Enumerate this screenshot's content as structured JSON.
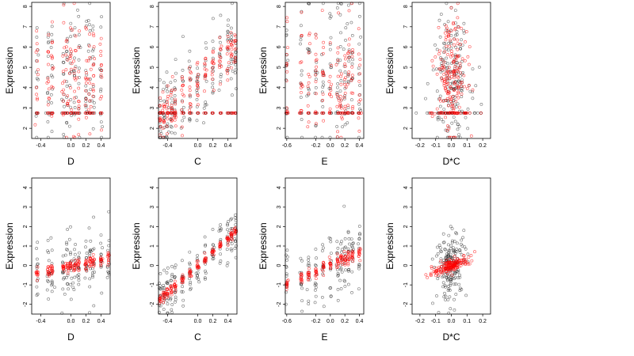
{
  "colors": {
    "series_black": "#000000",
    "series_red": "#ff0000"
  },
  "chart_data": [
    {
      "type": "scatter",
      "panel": "top-1",
      "xlabel": "D",
      "ylabel": "Expression",
      "xlim": [
        -0.52,
        0.52
      ],
      "ylim": [
        1.5,
        8.2
      ],
      "xticks": [
        -0.4,
        0.0,
        0.2,
        0.4
      ],
      "xtick_labels": [
        "-0.4",
        "0.0",
        "0.2",
        "0.4"
      ],
      "yticks": [
        2,
        3,
        4,
        5,
        6,
        7,
        8
      ],
      "ytick_labels": [
        "2",
        "3",
        "4",
        "5",
        "6",
        "7",
        "8"
      ],
      "series": [
        {
          "color": "#000000",
          "pattern": "wide",
          "floor": 2.75,
          "x": [
            -0.45,
            -0.3,
            -0.25,
            -0.1,
            -0.05,
            0.0,
            0.05,
            0.1,
            0.2,
            0.25,
            0.3,
            0.4
          ],
          "center": 4.5,
          "spread": 1.8
        },
        {
          "color": "#ff0000",
          "pattern": "wide",
          "floor": 2.75,
          "x": [
            -0.45,
            -0.3,
            -0.25,
            -0.1,
            -0.05,
            0.0,
            0.05,
            0.1,
            0.2,
            0.25,
            0.3,
            0.4
          ],
          "center": 4.8,
          "spread": 1.5
        }
      ]
    },
    {
      "type": "scatter",
      "panel": "top-2",
      "xlabel": "C",
      "ylabel": "Expression",
      "xlim": [
        -0.52,
        0.52
      ],
      "ylim": [
        1.5,
        8.2
      ],
      "xticks": [
        -0.4,
        0.0,
        0.2,
        0.4
      ],
      "xtick_labels": [
        "-0.4",
        "0.0",
        "0.2",
        "0.4"
      ],
      "yticks": [
        2,
        3,
        4,
        5,
        6,
        7,
        8
      ],
      "ytick_labels": [
        "2",
        "3",
        "4",
        "5",
        "6",
        "7",
        "8"
      ],
      "series": [
        {
          "color": "#000000",
          "pattern": "trend",
          "floor": 2.75,
          "slope": 4.0,
          "intercept": 4.2,
          "spread": 1.2,
          "x": [
            -0.5,
            -0.45,
            -0.4,
            -0.35,
            -0.3,
            -0.2,
            -0.1,
            0.0,
            0.1,
            0.2,
            0.3,
            0.4,
            0.45,
            0.5
          ]
        },
        {
          "color": "#ff0000",
          "pattern": "trend",
          "floor": 2.75,
          "slope": 3.5,
          "intercept": 4.3,
          "spread": 0.6,
          "x": [
            -0.5,
            -0.45,
            -0.4,
            -0.35,
            -0.3,
            -0.2,
            -0.1,
            0.0,
            0.1,
            0.2,
            0.3,
            0.4,
            0.45,
            0.5
          ]
        }
      ]
    },
    {
      "type": "scatter",
      "panel": "top-3",
      "xlabel": "E",
      "ylabel": "Expression",
      "xlim": [
        -0.62,
        0.46
      ],
      "ylim": [
        1.5,
        8.2
      ],
      "xticks": [
        -0.6,
        -0.2,
        0.0,
        0.2,
        0.4
      ],
      "xtick_labels": [
        "-0.6",
        "-0.2",
        "0.0",
        "0.2",
        "0.4"
      ],
      "yticks": [
        2,
        3,
        4,
        5,
        6,
        7,
        8
      ],
      "ytick_labels": [
        "2",
        "3",
        "4",
        "5",
        "6",
        "7",
        "8"
      ],
      "series": [
        {
          "color": "#000000",
          "pattern": "wide",
          "floor": 2.75,
          "x": [
            -0.6,
            -0.4,
            -0.3,
            -0.2,
            -0.1,
            0.0,
            0.1,
            0.15,
            0.2,
            0.25,
            0.3,
            0.4
          ],
          "center": 4.6,
          "spread": 1.8
        },
        {
          "color": "#ff0000",
          "pattern": "wide",
          "floor": 2.75,
          "x": [
            -0.6,
            -0.4,
            -0.3,
            -0.2,
            -0.1,
            0.0,
            0.1,
            0.15,
            0.2,
            0.25,
            0.3,
            0.4
          ],
          "center": 4.5,
          "spread": 1.5
        }
      ]
    },
    {
      "type": "scatter",
      "panel": "top-4",
      "xlabel": "D*C",
      "ylabel": "Expression",
      "xlim": [
        -0.25,
        0.25
      ],
      "ylim": [
        1.5,
        8.2
      ],
      "xticks": [
        -0.2,
        -0.1,
        0.0,
        0.1,
        0.2
      ],
      "xtick_labels": [
        "-0.2",
        "-0.1",
        "0.0",
        "0.1",
        "0.2"
      ],
      "yticks": [
        2,
        3,
        4,
        5,
        6,
        7,
        8
      ],
      "ytick_labels": [
        "2",
        "3",
        "4",
        "5",
        "6",
        "7",
        "8"
      ],
      "series": [
        {
          "color": "#000000",
          "pattern": "center",
          "floor": 2.75,
          "center": 4.5,
          "spread": 1.8,
          "xsd": 0.06
        },
        {
          "color": "#ff0000",
          "pattern": "center",
          "floor": 2.75,
          "center": 4.6,
          "spread": 1.6,
          "xsd": 0.05
        }
      ]
    },
    {
      "type": "scatter",
      "panel": "bottom-1",
      "xlabel": "D",
      "ylabel": "Expression",
      "xlim": [
        -0.52,
        0.52
      ],
      "ylim": [
        -2.5,
        4.5
      ],
      "xticks": [
        -0.4,
        0.0,
        0.2,
        0.4
      ],
      "xtick_labels": [
        "-0.4",
        "0.0",
        "0.2",
        "0.4"
      ],
      "yticks": [
        -2,
        -1,
        0,
        1,
        2,
        3,
        4
      ],
      "ytick_labels": [
        "-2",
        "-1",
        "0",
        "1",
        "2",
        "3",
        "4"
      ],
      "series": [
        {
          "color": "#000000",
          "pattern": "trend",
          "slope": 0.8,
          "intercept": -0.1,
          "spread": 0.9,
          "x": [
            -0.45,
            -0.3,
            -0.25,
            -0.1,
            -0.05,
            0.0,
            0.05,
            0.1,
            0.2,
            0.25,
            0.3,
            0.4,
            0.5
          ]
        },
        {
          "color": "#ff0000",
          "pattern": "trend",
          "slope": 0.8,
          "intercept": -0.05,
          "spread": 0.15,
          "x": [
            -0.45,
            -0.3,
            -0.25,
            -0.1,
            -0.05,
            0.0,
            0.05,
            0.1,
            0.2,
            0.25,
            0.3,
            0.4,
            0.5
          ]
        }
      ]
    },
    {
      "type": "scatter",
      "panel": "bottom-2",
      "xlabel": "C",
      "ylabel": "Expression",
      "xlim": [
        -0.52,
        0.52
      ],
      "ylim": [
        -2.5,
        4.5
      ],
      "xticks": [
        -0.4,
        0.0,
        0.2,
        0.4
      ],
      "xtick_labels": [
        "-0.4",
        "0.0",
        "0.2",
        "0.4"
      ],
      "yticks": [
        -2,
        -1,
        0,
        1,
        2,
        3,
        4
      ],
      "ytick_labels": [
        "-2",
        "-1",
        "0",
        "1",
        "2",
        "3",
        "4"
      ],
      "series": [
        {
          "color": "#000000",
          "pattern": "trend",
          "slope": 3.5,
          "intercept": 0.0,
          "spread": 0.6,
          "x": [
            -0.5,
            -0.45,
            -0.4,
            -0.35,
            -0.3,
            -0.2,
            -0.1,
            0.0,
            0.1,
            0.2,
            0.3,
            0.4,
            0.45,
            0.5
          ]
        },
        {
          "color": "#ff0000",
          "pattern": "trend",
          "slope": 3.5,
          "intercept": 0.0,
          "spread": 0.12,
          "x": [
            -0.5,
            -0.45,
            -0.4,
            -0.35,
            -0.3,
            -0.2,
            -0.1,
            0.0,
            0.1,
            0.2,
            0.3,
            0.4,
            0.45,
            0.5
          ]
        }
      ]
    },
    {
      "type": "scatter",
      "panel": "bottom-3",
      "xlabel": "E",
      "ylabel": "Expression",
      "xlim": [
        -0.62,
        0.46
      ],
      "ylim": [
        -2.5,
        4.5
      ],
      "xticks": [
        -0.6,
        -0.2,
        0.0,
        0.2,
        0.4
      ],
      "xtick_labels": [
        "-0.6",
        "-0.2",
        "0.0",
        "0.2",
        "0.4"
      ],
      "yticks": [
        -2,
        -1,
        0,
        1,
        2,
        3,
        4
      ],
      "ytick_labels": [
        "-2",
        "-1",
        "0",
        "1",
        "2",
        "3",
        "4"
      ],
      "series": [
        {
          "color": "#000000",
          "pattern": "trend",
          "slope": 1.6,
          "intercept": 0.0,
          "spread": 0.9,
          "x": [
            -0.6,
            -0.4,
            -0.3,
            -0.2,
            -0.1,
            0.0,
            0.1,
            0.15,
            0.2,
            0.25,
            0.3,
            0.4
          ]
        },
        {
          "color": "#ff0000",
          "pattern": "trend",
          "slope": 1.6,
          "intercept": 0.0,
          "spread": 0.15,
          "x": [
            -0.6,
            -0.4,
            -0.3,
            -0.2,
            -0.1,
            0.0,
            0.1,
            0.15,
            0.2,
            0.25,
            0.3,
            0.4
          ]
        }
      ]
    },
    {
      "type": "scatter",
      "panel": "bottom-4",
      "xlabel": "D*C",
      "ylabel": "Expression",
      "xlim": [
        -0.25,
        0.25
      ],
      "ylim": [
        -2.5,
        4.5
      ],
      "xticks": [
        -0.2,
        -0.1,
        0.0,
        0.1,
        0.2
      ],
      "xtick_labels": [
        "-0.2",
        "-0.1",
        "0.0",
        "0.1",
        "0.2"
      ],
      "yticks": [
        -2,
        -1,
        0,
        1,
        2,
        3,
        4
      ],
      "ytick_labels": [
        "-2",
        "-1",
        "0",
        "1",
        "2",
        "3",
        "4"
      ],
      "series": [
        {
          "color": "#000000",
          "pattern": "center",
          "slope": 3.0,
          "center": 0.0,
          "spread": 0.9,
          "xsd": 0.05
        },
        {
          "color": "#ff0000",
          "pattern": "center",
          "slope": 3.0,
          "center": 0.0,
          "spread": 0.15,
          "xsd": 0.06
        }
      ]
    }
  ]
}
